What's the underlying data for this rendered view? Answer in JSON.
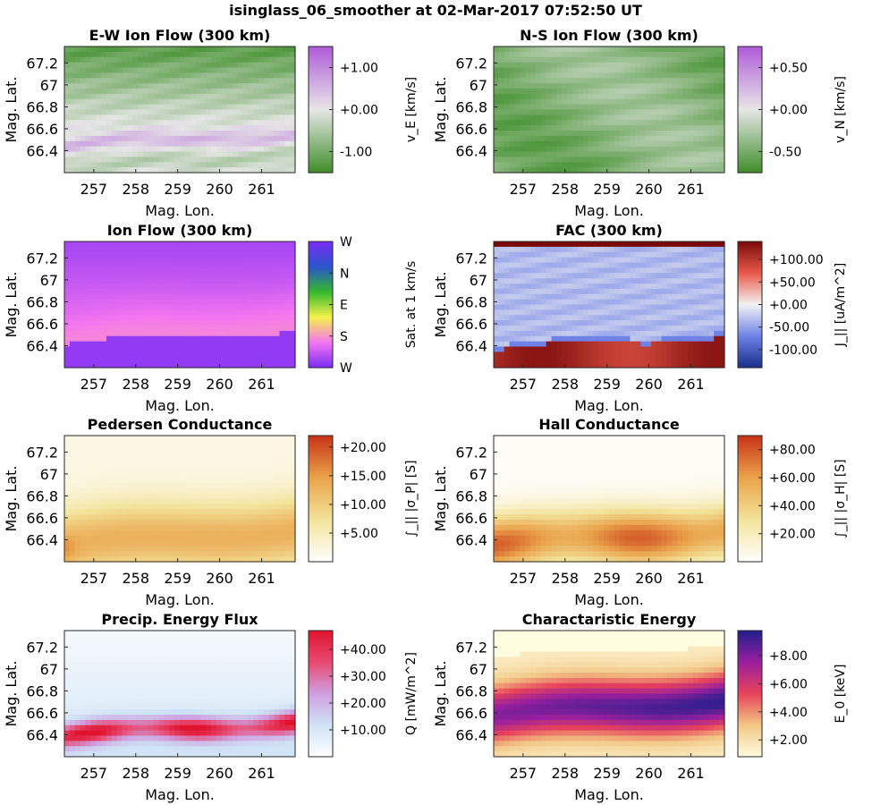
{
  "figure": {
    "title": "isinglass_06_smoother at 02-Mar-2017 07:52:50 UT"
  },
  "colors": {
    "frame": "#262626",
    "background": "#ffffff"
  },
  "chart_data": [
    {
      "type": "heatmap",
      "title": "E-W Ion Flow (300 km)",
      "xlabel": "Mag. Lon.",
      "ylabel": "Mag. Lat.",
      "xlim": [
        256.3,
        261.8
      ],
      "ylim": [
        66.2,
        67.35
      ],
      "xticks": [
        257,
        258,
        259,
        260,
        261
      ],
      "yticks": [
        66.4,
        66.6,
        66.8,
        67,
        67.2
      ],
      "colorbar": {
        "label": "v_E [km/s]",
        "range": [
          -1.5,
          1.5
        ],
        "ticks": [
          -1.0,
          0.0,
          1.0
        ],
        "ticklabels": [
          "-1.00",
          "+0.00",
          "+1.00"
        ],
        "colormap": [
          "#3f8f2a",
          "#e6e6e6",
          "#b05ad9"
        ]
      }
    },
    {
      "type": "heatmap",
      "title": "N-S Ion Flow (300 km)",
      "xlabel": "Mag. Lon.",
      "ylabel": "Mag. Lat.",
      "xlim": [
        256.3,
        261.8
      ],
      "ylim": [
        66.2,
        67.35
      ],
      "xticks": [
        257,
        258,
        259,
        260,
        261
      ],
      "yticks": [
        66.4,
        66.6,
        66.8,
        67,
        67.2
      ],
      "colorbar": {
        "label": "v_N [km/s]",
        "range": [
          -0.75,
          0.75
        ],
        "ticks": [
          -0.5,
          0.0,
          0.5
        ],
        "ticklabels": [
          "-0.50",
          "+0.00",
          "+0.50"
        ],
        "colormap": [
          "#3f8f2a",
          "#e6e6e6",
          "#b05ad9"
        ]
      }
    },
    {
      "type": "heatmap",
      "title": "Ion Flow (300 km)",
      "xlabel": "Mag. Lon.",
      "ylabel": "Mag. Lat.",
      "xlim": [
        256.3,
        261.8
      ],
      "ylim": [
        66.2,
        67.35
      ],
      "xticks": [
        257,
        258,
        259,
        260,
        261
      ],
      "yticks": [
        66.4,
        66.6,
        66.8,
        67,
        67.2
      ],
      "colorbar": {
        "label": "Sat. at 1 km/s",
        "range": [
          0,
          4
        ],
        "ticks": [
          0,
          1,
          2,
          3,
          4
        ],
        "ticklabels": [
          "W",
          "S",
          "E",
          "N",
          "W"
        ],
        "colormap": [
          "#7b2cf5",
          "#f576f0",
          "#f5f24a",
          "#35b82e",
          "#2a55cc",
          "#7b2cf5"
        ]
      }
    },
    {
      "type": "heatmap",
      "title": "FAC (300 km)",
      "xlabel": "Mag. Lon.",
      "ylabel": "Mag. Lat.",
      "xlim": [
        256.3,
        261.8
      ],
      "ylim": [
        66.2,
        67.35
      ],
      "xticks": [
        257,
        258,
        259,
        260,
        261
      ],
      "yticks": [
        66.4,
        66.6,
        66.8,
        67,
        67.2
      ],
      "colorbar": {
        "label": "J_|| [uA/m^2]",
        "range": [
          -140,
          140
        ],
        "ticks": [
          -100,
          -50,
          0,
          50,
          100
        ],
        "ticklabels": [
          "-100.00",
          "-50.00",
          "+0.00",
          "+50.00",
          "+100.00"
        ],
        "colormap": [
          "#1a2f8c",
          "#6f82e6",
          "#f2f2f2",
          "#e85a4a",
          "#7a0a0a"
        ]
      }
    },
    {
      "type": "heatmap",
      "title": "Pedersen Conductance",
      "xlabel": "Mag. Lon.",
      "ylabel": "Mag. Lat.",
      "xlim": [
        256.3,
        261.8
      ],
      "ylim": [
        66.2,
        67.35
      ],
      "xticks": [
        257,
        258,
        259,
        260,
        261
      ],
      "yticks": [
        66.4,
        66.6,
        66.8,
        67,
        67.2
      ],
      "colorbar": {
        "label": "∫_|| |σ_P| [S]",
        "range": [
          0,
          22
        ],
        "ticks": [
          5,
          10,
          15,
          20
        ],
        "ticklabels": [
          "+5.00",
          "+10.00",
          "+15.00",
          "+20.00"
        ],
        "colormap": [
          "#ffffff",
          "#f2e39a",
          "#eaa24a",
          "#c83216"
        ]
      }
    },
    {
      "type": "heatmap",
      "title": "Hall Conductance",
      "xlabel": "Mag. Lon.",
      "ylabel": "Mag. Lat.",
      "xlim": [
        256.3,
        261.8
      ],
      "ylim": [
        66.2,
        67.35
      ],
      "xticks": [
        257,
        258,
        259,
        260,
        261
      ],
      "yticks": [
        66.4,
        66.6,
        66.8,
        67,
        67.2
      ],
      "colorbar": {
        "label": "∫_|| |σ_H| [S]",
        "range": [
          0,
          90
        ],
        "ticks": [
          20,
          40,
          60,
          80
        ],
        "ticklabels": [
          "+20.00",
          "+40.00",
          "+60.00",
          "+80.00"
        ],
        "colormap": [
          "#ffffff",
          "#f2e39a",
          "#eaa24a",
          "#c83216"
        ]
      }
    },
    {
      "type": "heatmap",
      "title": "Precip. Energy Flux",
      "xlabel": "Mag. Lon.",
      "ylabel": "Mag. Lat.",
      "xlim": [
        256.3,
        261.8
      ],
      "ylim": [
        66.2,
        67.35
      ],
      "xticks": [
        257,
        258,
        259,
        260,
        261
      ],
      "yticks": [
        66.4,
        66.6,
        66.8,
        67,
        67.2
      ],
      "colorbar": {
        "label": "Q [mW/m^2]",
        "range": [
          0,
          47
        ],
        "ticks": [
          10,
          20,
          30,
          40
        ],
        "ticklabels": [
          "+10.00",
          "+20.00",
          "+30.00",
          "+40.00"
        ],
        "colormap": [
          "#ffffff",
          "#cfe3f5",
          "#cf9fe0",
          "#e84a72",
          "#e0132f"
        ]
      }
    },
    {
      "type": "heatmap",
      "title": "Charactaristic Energy",
      "xlabel": "Mag. Lon.",
      "ylabel": "Mag. Lat.",
      "xlim": [
        256.3,
        261.8
      ],
      "ylim": [
        66.2,
        67.35
      ],
      "xticks": [
        257,
        258,
        259,
        260,
        261
      ],
      "yticks": [
        66.4,
        66.6,
        66.8,
        67,
        67.2
      ],
      "colorbar": {
        "label": "E_0 [keV]",
        "range": [
          0.8,
          9.8
        ],
        "ticks": [
          2,
          4,
          6,
          8
        ],
        "ticklabels": [
          "+2.00",
          "+4.00",
          "+6.00",
          "+8.00"
        ],
        "colormap": [
          "#fffde0",
          "#f2c784",
          "#e8425a",
          "#9a1f9e",
          "#1f1f8c"
        ]
      }
    }
  ]
}
